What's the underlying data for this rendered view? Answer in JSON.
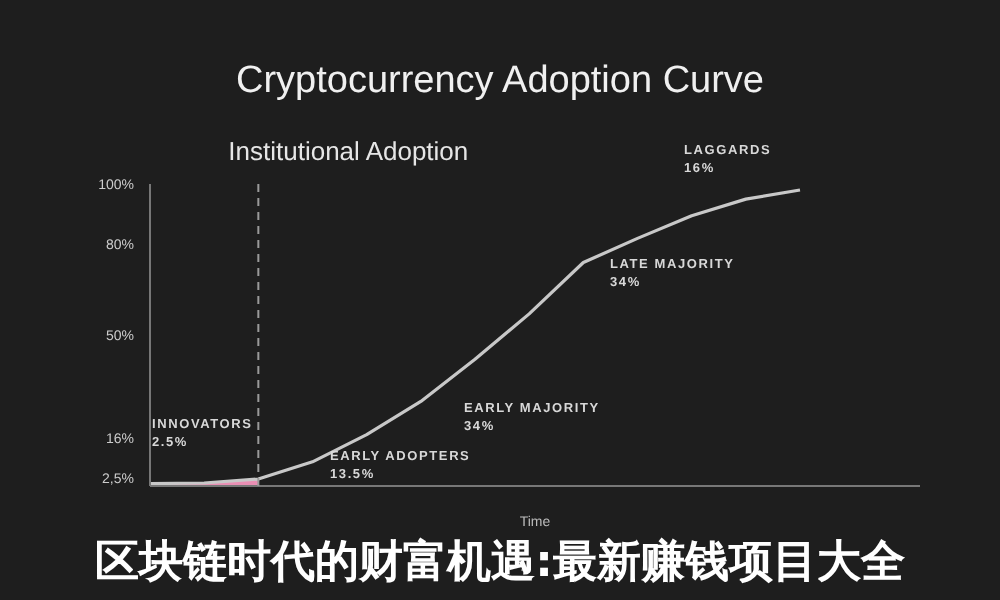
{
  "chart_data": {
    "type": "line",
    "title": "Cryptocurrency Adoption Curve",
    "xlabel": "Time",
    "categories": [
      null,
      null,
      null,
      null,
      null,
      null,
      null,
      null,
      null,
      null,
      null,
      null,
      null
    ],
    "ylim": [
      0,
      100
    ],
    "yticks": [
      {
        "value": 2.5,
        "label": "2,5%"
      },
      {
        "value": 16,
        "label": "16%"
      },
      {
        "value": 50,
        "label": "50%"
      },
      {
        "value": 80,
        "label": "80%"
      },
      {
        "value": 100,
        "label": "100%"
      }
    ],
    "tick_labels": "y",
    "grid": false,
    "legend": false,
    "marker": "none",
    "line_style": "solid",
    "series": [
      {
        "type": "area",
        "color": "#e98fb4",
        "values": [
          0.8,
          1,
          2.3,
          null,
          null,
          null,
          null,
          null,
          null,
          null,
          null,
          null,
          null
        ]
      },
      {
        "color": "#c8c8c8",
        "values": [
          0.8,
          1,
          2.3,
          8,
          17,
          28,
          42,
          57,
          74,
          82,
          89.5,
          95,
          98
        ]
      }
    ],
    "annotations": [
      "Institutional Adoption",
      "INNOVATORS\n2.5%",
      "EARLY ADOPTERS\n13.5%",
      "EARLY MAJORITY\n34%",
      "LATE MAJORITY\n34%",
      "LAGGARDS\n16%",
      "区块链时代的财富机遇:最新赚钱项目大全"
    ]
  }
}
